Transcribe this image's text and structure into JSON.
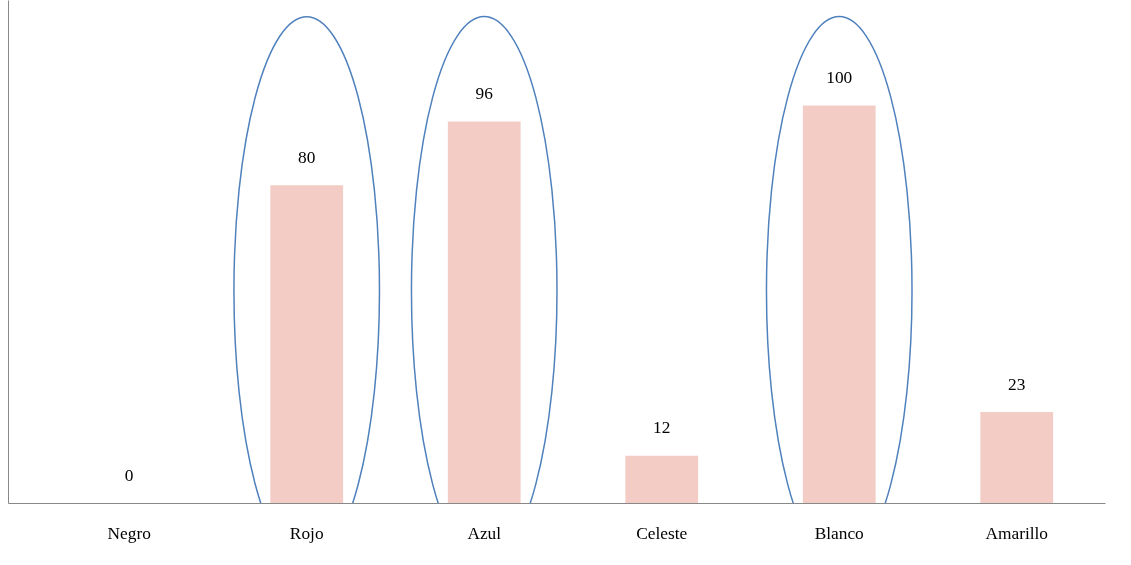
{
  "chart_data": {
    "type": "bar",
    "categories": [
      "Negro",
      "Rojo",
      "Azul",
      "Celeste",
      "Blanco",
      "Amarillo"
    ],
    "values": [
      0,
      80,
      96,
      12,
      100,
      23
    ],
    "color": "#f4ccc6",
    "data_labels": true,
    "grid": false
  }
}
